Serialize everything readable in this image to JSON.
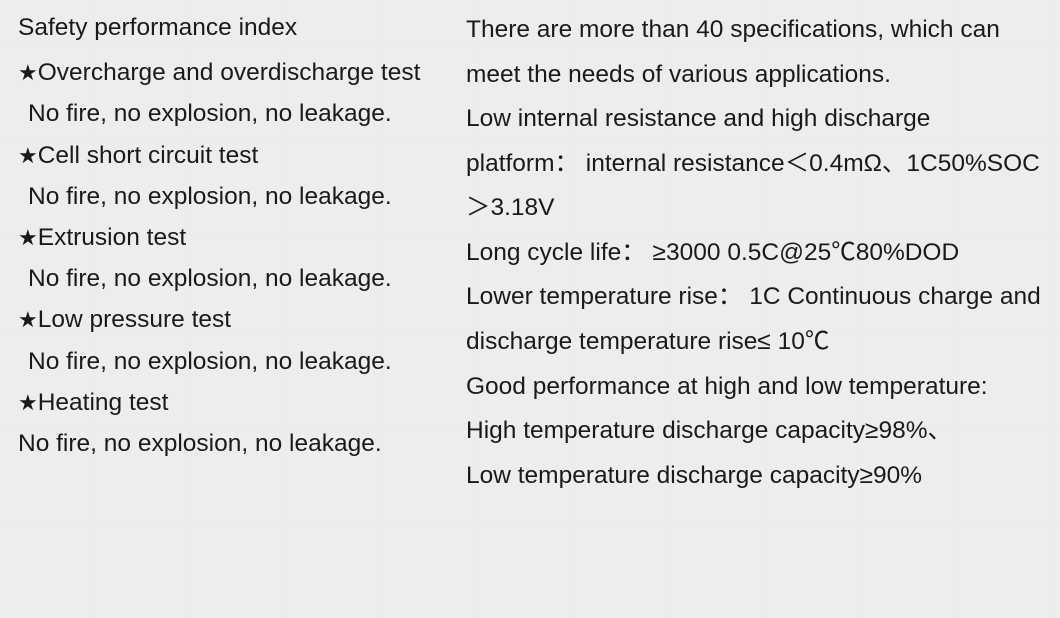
{
  "styling": {
    "background_color": "#ededed",
    "text_color": "#1a1a1a",
    "font_family": "Segoe UI / Microsoft YaHei",
    "left_font_size_pt": 18,
    "right_font_size_pt": 18,
    "left_line_height": 1.6,
    "right_line_height": 1.82,
    "star_glyph": "★"
  },
  "left": {
    "title": "Safety performance index",
    "tests": [
      {
        "name": "Overcharge and overdischarge test",
        "result": "No fire, no explosion, no leakage."
      },
      {
        "name": "Cell short circuit test",
        "result": "No fire, no explosion, no leakage."
      },
      {
        "name": "Extrusion test",
        "result": "No fire, no explosion, no leakage."
      },
      {
        "name": "Low pressure test",
        "result": "No fire, no explosion, no leakage."
      },
      {
        "name": "Heating test",
        "result": "No fire, no explosion, no leakage."
      }
    ]
  },
  "right": {
    "lines": [
      "There are more than 40 specifications, which can meet the needs of various applications.",
      "Low internal resistance and high discharge platform： internal resistance＜0.4mΩ、1C50%SOC＞3.18V",
      "Long cycle life： ≥3000 0.5C@25℃80%DOD",
      "Lower temperature rise： 1C Continuous charge and discharge temperature rise≤ 10℃",
      "Good performance at high and low temperature:",
      "High temperature discharge capacity≥98%、",
      "Low temperature discharge capacity≥90%"
    ]
  }
}
